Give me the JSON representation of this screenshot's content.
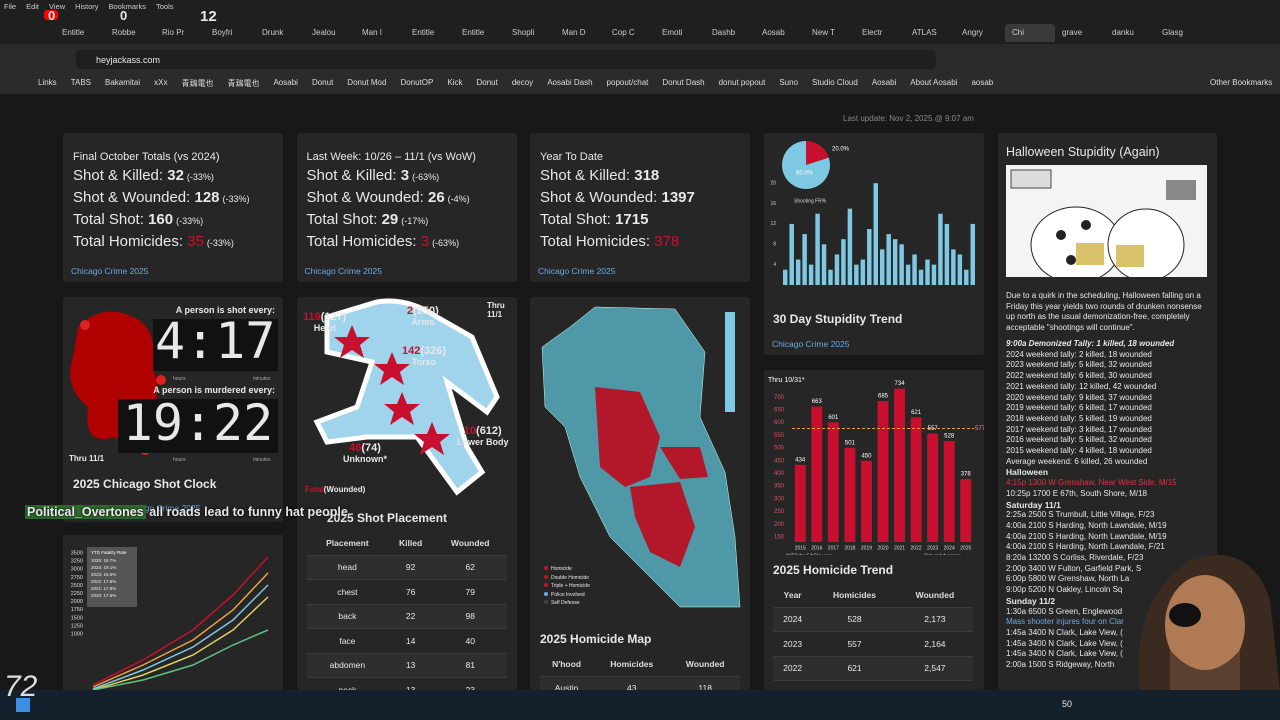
{
  "browser": {
    "menu": [
      "File",
      "Edit",
      "View",
      "History",
      "Bookmarks",
      "Tools"
    ],
    "tabs": [
      "Entitle",
      "Robbe",
      "Rio Pr",
      "Boyfri",
      "Drunk",
      "Jealou",
      "Man I",
      "Entitle",
      "Entitle",
      "Shopli",
      "Man D",
      "Cop C",
      "Emoti",
      "Dashb",
      "Aosab",
      "New T",
      "Electr",
      "ATLAS",
      "Angry",
      "Chi",
      "grave",
      "danku",
      "Glasg"
    ],
    "active_tab": 19,
    "url": "heyjackass.com",
    "bookmarks": [
      "Links",
      "TABS",
      "Bakamitai",
      "xXx",
      "青鶏電也",
      "青鶏電也",
      "Aosabi",
      "Donut",
      "Donut Mod",
      "DonutOP",
      "Kick",
      "Donut",
      "decoy",
      "Aosabi Dash",
      "popout/chat",
      "Donut Dash",
      "donut popout",
      "Suno",
      "Studio Cloud",
      "Aosabi",
      "About Aosabi",
      "aosab"
    ],
    "other_bookmarks": "Other Bookmarks"
  },
  "overlay": {
    "counters": [
      "0",
      "0",
      "12"
    ],
    "chat_user": "Political_Overtones",
    "chat_message": "all roads lead to funny hat people",
    "logo": "72"
  },
  "header": {
    "last_update": "Last update: Nov 2, 2025 @ 9:07 am"
  },
  "cards": [
    {
      "title": "Final October Totals (vs 2024)",
      "stats": [
        {
          "label": "Shot & Killed:",
          "value": 32,
          "change": "(-33%)"
        },
        {
          "label": "Shot & Wounded:",
          "value": 128,
          "change": "(-33%)"
        },
        {
          "label": "Total Shot:",
          "value": 160,
          "change": "(-33%)"
        },
        {
          "label": "Total Homicides:",
          "value": 35,
          "change": "(-33%)"
        }
      ],
      "footer": "Chicago Crime 2025"
    },
    {
      "title": "Last Week: 10/26 – 11/1 (vs WoW)",
      "stats": [
        {
          "label": "Shot & Killed:",
          "value": 3,
          "change": "(-63%)"
        },
        {
          "label": "Shot & Wounded:",
          "value": 26,
          "change": "(-4%)"
        },
        {
          "label": "Total Shot:",
          "value": 29,
          "change": "(-17%)"
        },
        {
          "label": "Total Homicides:",
          "value": 3,
          "change": "(-63%)"
        }
      ],
      "footer": "Chicago Crime 2025"
    },
    {
      "title": "Year To Date",
      "stats": [
        {
          "label": "Shot & Killed:",
          "value": 318
        },
        {
          "label": "Shot & Wounded:",
          "value": 1397
        },
        {
          "label": "Total Shot:",
          "value": 1715
        },
        {
          "label": "Total Homicides:",
          "value": 378
        }
      ],
      "footer": "Chicago Crime 2025"
    }
  ],
  "stupidity_chart": {
    "type": "bar",
    "title": "30 Day Stupidity Trend",
    "footer": "Chicago Crime 2025",
    "color": "#7ec8e3",
    "values": [
      3,
      12,
      5,
      10,
      4,
      14,
      8,
      3,
      6,
      9,
      15,
      4,
      5,
      11,
      20,
      7,
      10,
      9,
      8,
      4,
      6,
      3,
      5,
      4,
      14,
      12,
      7,
      6,
      3,
      12
    ],
    "ylim": [
      0,
      22
    ],
    "yticks": [
      4,
      8,
      12,
      16,
      20
    ],
    "pie": {
      "values": [
        20.0,
        80.0
      ],
      "labels": [
        "20.0%",
        "80.0%"
      ],
      "colors": [
        "#c8102e",
        "#7ec8e3"
      ]
    },
    "pie_caption": "Shooting FR%"
  },
  "halloween": {
    "title": "Halloween Stupidity (Again)",
    "intro": "Due to a quirk in the scheduling, Halloween falling on a Friday this year yields two rounds of drunken nonsense up north as the usual demonization-free, completely acceptable \"shootings will continue\".",
    "lines": [
      {
        "text": "9:00a Demonized Tally: 1 killed, 18 wounded",
        "style": "tally-head"
      },
      {
        "text": "2024 weekend tally: 2 killed, 18 wounded"
      },
      {
        "text": "2023 weekend tally: 5 killed, 32 wounded"
      },
      {
        "text": "2022 weekend tally: 6 killed, 30 wounded"
      },
      {
        "text": "2021 weekend tally: 12 killed, 42 wounded"
      },
      {
        "text": "2020 weekend tally: 9 killed, 37 wounded"
      },
      {
        "text": "2019 weekend tally: 6 killed, 17 wounded"
      },
      {
        "text": "2018 weekend tally: 5 killed, 19 wounded"
      },
      {
        "text": "2017 weekend tally: 3 killed, 17 wounded"
      },
      {
        "text": "2016 weekend tally: 5 killed, 32 wounded"
      },
      {
        "text": "2015 weekend tally: 4 killed, 18 wounded"
      },
      {
        "text": "Average weekend: 6 killed, 26 wounded"
      },
      {
        "text": "Halloween",
        "style": "heading"
      },
      {
        "text": "4:15p 1300 W Grenshaw, Near West Side, M/15",
        "style": "red"
      },
      {
        "text": "10:25p 1700 E 67th, South Shore, M/18"
      },
      {
        "text": "Saturday 11/1",
        "style": "heading"
      },
      {
        "text": "2:25a 2500 S Trumbull, Little Village, F/23"
      },
      {
        "text": "4:00a 2100 S Harding, North Lawndale, M/19"
      },
      {
        "text": "4:00a 2100 S Harding, North Lawndale, M/19"
      },
      {
        "text": "4:00a 2100 S Harding, North Lawndale, F/21"
      },
      {
        "text": "8:20a 13200 S Corliss, Riverdale, F/23"
      },
      {
        "text": "2:00p 3400 W Fulton, Garfield Park, S"
      },
      {
        "text": "6:00p 5800 W Grenshaw, North La"
      },
      {
        "text": "9:00p 5200 N Oakley, Lincoln Sq"
      },
      {
        "text": "Sunday 11/2",
        "style": "heading"
      },
      {
        "text": "1:30a 6500 S Green, Englewood"
      },
      {
        "text": "Mass shooter injures four on Clar",
        "style": "blue"
      },
      {
        "text": "1:45a 3400 N Clark, Lake View, ("
      },
      {
        "text": "1:45a 3400 N Clark, Lake View, ("
      },
      {
        "text": "1:45a 3400 N Clark, Lake View, ("
      },
      {
        "text": "2:00a 1500 S Ridgeway, North"
      }
    ]
  },
  "shot_clock": {
    "title": "2025 Chicago Shot Clock",
    "shot_caption": "A person is shot every:",
    "shot_time": "4:17",
    "murder_caption": "A person is murdered every:",
    "murder_time": "19:22",
    "hours": "hours",
    "minutes": "minutes",
    "thru": "Thru 11/1",
    "footer": "Chicago Crime 2025"
  },
  "shot_placement": {
    "thru": "Thru 11/1",
    "title": "2025 Shot Placement",
    "legend_fatal": "Fatal",
    "legend_wounded": "(Wounded)",
    "regions": [
      {
        "name": "Head",
        "killed": 119,
        "wounded": "(127)"
      },
      {
        "name": "Arms",
        "killed": 2,
        "wounded": "(250)"
      },
      {
        "name": "Torso",
        "killed": 142,
        "wounded": "(326)"
      },
      {
        "name": "Lower Body",
        "killed": 10,
        "wounded": "(612)"
      },
      {
        "name": "Unknown*",
        "killed": 46,
        "wounded": "(74)"
      }
    ],
    "table": {
      "columns": [
        "Placement",
        "Killed",
        "Wounded"
      ],
      "rows": [
        [
          "head",
          92,
          62
        ],
        [
          "chest",
          76,
          79
        ],
        [
          "back",
          22,
          98
        ],
        [
          "face",
          14,
          40
        ],
        [
          "abdomen",
          13,
          81
        ],
        [
          "neck",
          13,
          23
        ]
      ]
    }
  },
  "homicide_map": {
    "title": "2025 Homicide Map",
    "legend": [
      "Homicide",
      "Double Homicide",
      "Triple + Homicide",
      "Police Involved",
      "Self Defense"
    ],
    "table": {
      "columns": [
        "N'hood",
        "Homicides",
        "Wounded"
      ],
      "rows": [
        [
          "Austin",
          43,
          118
        ]
      ]
    }
  },
  "cumulative_chart": {
    "yticks": [
      3500,
      3250,
      3000,
      2750,
      2500,
      2250,
      2000,
      1750,
      1500,
      1250,
      1000
    ],
    "legend_title": "YTD Fatality Rate",
    "legend": [
      "2025: 18.7%",
      "2024: 19.1%",
      "2023: 19.6%",
      "2022: 17.6%",
      "2021: 17.9%",
      "2020: 17.6%"
    ]
  },
  "homicide_trend": {
    "type": "bar",
    "note": "Thru 10/31*",
    "title": "2025 Homicide Trend",
    "categories": [
      "2015",
      "2016",
      "2017",
      "2018",
      "2019",
      "2020",
      "2021",
      "2022",
      "2023",
      "2024",
      "2025"
    ],
    "values": [
      434,
      663,
      601,
      501,
      450,
      685,
      734,
      621,
      557,
      528,
      378
    ],
    "color": "#c8102e",
    "ylim": [
      130,
      760
    ],
    "yticks": [
      150,
      200,
      250,
      300,
      350,
      400,
      450,
      500,
      550,
      600,
      650,
      700
    ],
    "average": 577,
    "average_color": "#e0a040",
    "footnote": "*YTD for EACH year",
    "average_label": "Oct end Average",
    "table": {
      "columns": [
        "Year",
        "Homicides",
        "Wounded"
      ],
      "rows": [
        [
          "2024",
          528,
          "2,173"
        ],
        [
          "2023",
          557,
          "2,164"
        ],
        [
          "2022",
          621,
          "2,547"
        ],
        [
          "2021",
          734,
          "3,243"
        ]
      ]
    }
  },
  "taskbar": {
    "count": "50"
  }
}
